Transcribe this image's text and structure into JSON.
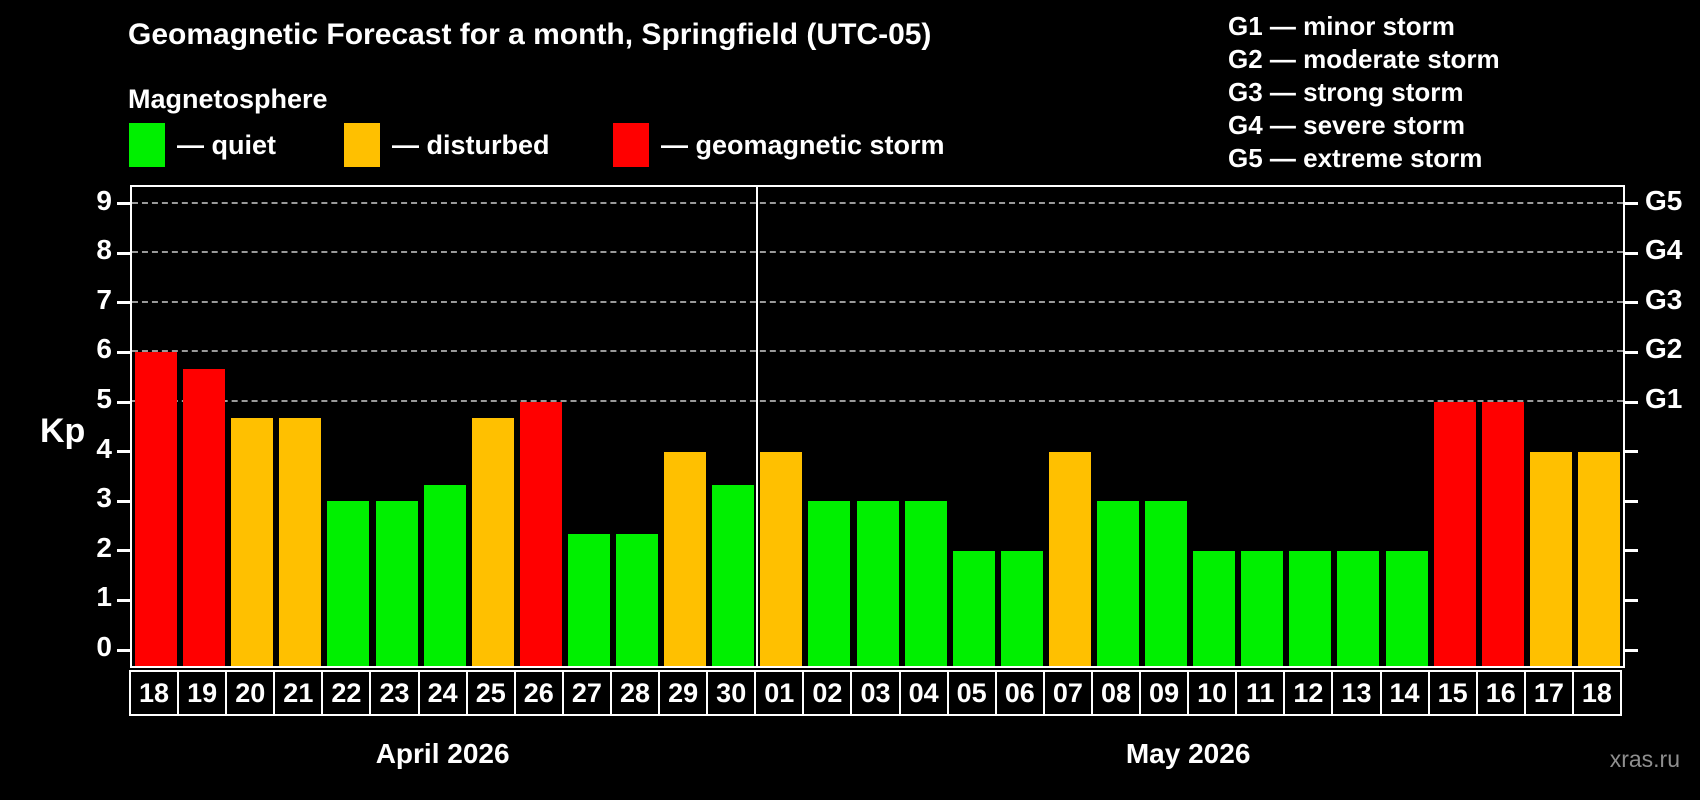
{
  "title": "Geomagnetic Forecast for a month, Springfield (UTC-05)",
  "subtitle": "Magnetosphere",
  "legend": {
    "quiet_label": "— quiet",
    "disturbed_label": "— disturbed",
    "storm_label": "— geomagnetic storm"
  },
  "g_scale_legend": [
    "G1 — minor storm",
    "G2 — moderate storm",
    "G3 — strong storm",
    "G4 — severe storm",
    "G5 — extreme storm"
  ],
  "watermark": "xras.ru",
  "colors": {
    "quiet": "#00f000",
    "disturbed": "#ffc000",
    "storm": "#ff0000",
    "background": "#000000",
    "frame": "#ffffff",
    "gridline": "#9a9a9a",
    "watermark": "#8f8f8f"
  },
  "chart_data": {
    "type": "bar",
    "ylabel": "Kp",
    "ylim": [
      0,
      9.4
    ],
    "yticks": [
      0,
      1,
      2,
      3,
      4,
      5,
      6,
      7,
      8,
      9
    ],
    "gridlines_at": [
      5,
      6,
      7,
      8,
      9
    ],
    "right_axis_labels": [
      {
        "kp": 5,
        "label": "G1"
      },
      {
        "kp": 6,
        "label": "G2"
      },
      {
        "kp": 7,
        "label": "G3"
      },
      {
        "kp": 8,
        "label": "G4"
      },
      {
        "kp": 9,
        "label": "G5"
      }
    ],
    "legend_position": "top-left",
    "grid": "dashed, Kp 5-9 only",
    "months": [
      {
        "label": "April 2026",
        "days": [
          {
            "day": "18",
            "kp": 6.0,
            "status": "storm"
          },
          {
            "day": "19",
            "kp": 5.67,
            "status": "storm"
          },
          {
            "day": "20",
            "kp": 4.67,
            "status": "disturbed"
          },
          {
            "day": "21",
            "kp": 4.67,
            "status": "disturbed"
          },
          {
            "day": "22",
            "kp": 3.0,
            "status": "quiet"
          },
          {
            "day": "23",
            "kp": 3.0,
            "status": "quiet"
          },
          {
            "day": "24",
            "kp": 3.33,
            "status": "quiet"
          },
          {
            "day": "25",
            "kp": 4.67,
            "status": "disturbed"
          },
          {
            "day": "26",
            "kp": 5.0,
            "status": "storm"
          },
          {
            "day": "27",
            "kp": 2.33,
            "status": "quiet"
          },
          {
            "day": "28",
            "kp": 2.33,
            "status": "quiet"
          },
          {
            "day": "29",
            "kp": 4.0,
            "status": "disturbed"
          },
          {
            "day": "30",
            "kp": 3.33,
            "status": "quiet"
          }
        ]
      },
      {
        "label": "May 2026",
        "days": [
          {
            "day": "01",
            "kp": 4.0,
            "status": "disturbed"
          },
          {
            "day": "02",
            "kp": 3.0,
            "status": "quiet"
          },
          {
            "day": "03",
            "kp": 3.0,
            "status": "quiet"
          },
          {
            "day": "04",
            "kp": 3.0,
            "status": "quiet"
          },
          {
            "day": "05",
            "kp": 2.0,
            "status": "quiet"
          },
          {
            "day": "06",
            "kp": 2.0,
            "status": "quiet"
          },
          {
            "day": "07",
            "kp": 4.0,
            "status": "disturbed"
          },
          {
            "day": "08",
            "kp": 3.0,
            "status": "quiet"
          },
          {
            "day": "09",
            "kp": 3.0,
            "status": "quiet"
          },
          {
            "day": "10",
            "kp": 2.0,
            "status": "quiet"
          },
          {
            "day": "11",
            "kp": 2.0,
            "status": "quiet"
          },
          {
            "day": "12",
            "kp": 2.0,
            "status": "quiet"
          },
          {
            "day": "13",
            "kp": 2.0,
            "status": "quiet"
          },
          {
            "day": "14",
            "kp": 2.0,
            "status": "quiet"
          },
          {
            "day": "15",
            "kp": 5.0,
            "status": "storm"
          },
          {
            "day": "16",
            "kp": 5.0,
            "status": "storm"
          },
          {
            "day": "17",
            "kp": 4.0,
            "status": "disturbed"
          },
          {
            "day": "18",
            "kp": 4.0,
            "status": "disturbed"
          }
        ]
      }
    ]
  }
}
